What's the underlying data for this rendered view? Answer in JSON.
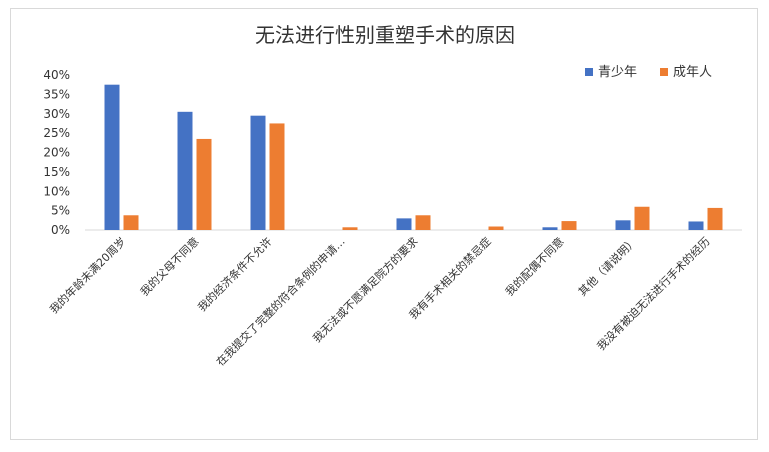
{
  "chart_data": {
    "type": "bar",
    "title": "无法进行性别重塑手术的原因",
    "xlabel": "",
    "ylabel": "",
    "ylim": [
      0,
      0.4
    ],
    "yticks": [
      "0%",
      "5%",
      "10%",
      "15%",
      "20%",
      "25%",
      "30%",
      "35%",
      "40%"
    ],
    "grid": false,
    "legend_position": "top-right",
    "categories": [
      "我的年龄未满20周岁",
      "我的父母不同意",
      "我的经济条件不允许",
      "在我提交了完整的符合条例的申请…",
      "我无法或不愿满足院方的要求",
      "我有手术相关的禁忌症",
      "我的配偶不同意",
      "其他（请说明）",
      "我没有被迫无法进行手术的经历"
    ],
    "series": [
      {
        "name": "青少年",
        "color": "#4472C4",
        "values": [
          0.375,
          0.305,
          0.295,
          0.0,
          0.03,
          0.0,
          0.007,
          0.025,
          0.022
        ]
      },
      {
        "name": "成年人",
        "color": "#ED7D31",
        "values": [
          0.038,
          0.235,
          0.275,
          0.007,
          0.038,
          0.009,
          0.023,
          0.06,
          0.057
        ]
      }
    ]
  }
}
